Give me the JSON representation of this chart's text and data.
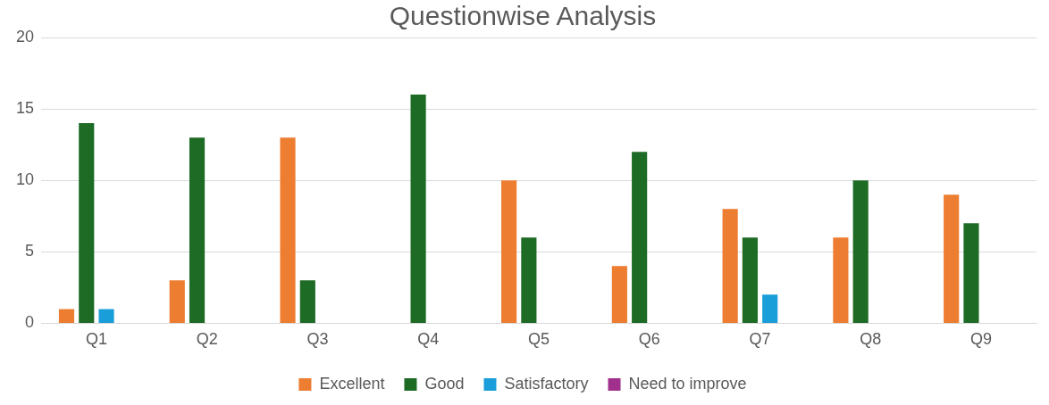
{
  "chart_data": {
    "type": "bar",
    "title": "Questionwise Analysis",
    "categories": [
      "Q1",
      "Q2",
      "Q3",
      "Q4",
      "Q5",
      "Q6",
      "Q7",
      "Q8",
      "Q9"
    ],
    "series": [
      {
        "name": "Excellent",
        "color": "#ed7d31",
        "values": [
          1,
          3,
          13,
          0,
          10,
          4,
          8,
          6,
          9
        ]
      },
      {
        "name": "Good",
        "color": "#1e6b26",
        "values": [
          14,
          13,
          3,
          16,
          6,
          12,
          6,
          10,
          7
        ]
      },
      {
        "name": "Satisfactory",
        "color": "#1a9ed9",
        "values": [
          1,
          0,
          0,
          0,
          0,
          0,
          2,
          0,
          0
        ]
      },
      {
        "name": "Need to improve",
        "color": "#a0308c",
        "values": [
          0,
          0,
          0,
          0,
          0,
          0,
          0,
          0,
          0
        ]
      }
    ],
    "ylim": [
      0,
      20
    ],
    "yticks": [
      0,
      5,
      10,
      15,
      20
    ],
    "grid": "y",
    "legend": "bottom"
  }
}
